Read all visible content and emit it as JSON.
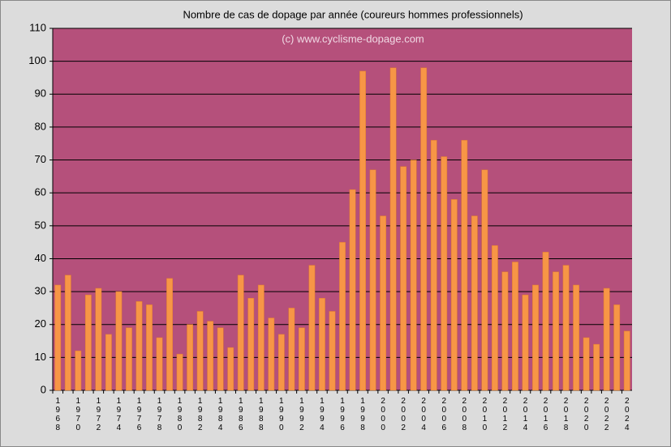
{
  "chart_data": {
    "type": "bar",
    "title": "Nombre  de cas de dopage par année (coureurs hommes professionnels)",
    "annotation": "(c) www.cyclisme-dopage.com",
    "categories": [
      "1968",
      null,
      "1970",
      null,
      "1972",
      null,
      "1974",
      null,
      "1976",
      null,
      "1978",
      null,
      "1980",
      null,
      "1982",
      null,
      "1984",
      null,
      "1986",
      null,
      "1988",
      null,
      "1990",
      null,
      "1992",
      null,
      "1994",
      null,
      "1996",
      null,
      "1998",
      null,
      "2000",
      null,
      "2002",
      null,
      "2004",
      null,
      "2006",
      null,
      "2008",
      null,
      "2010",
      null,
      "2012",
      null,
      "2014",
      null,
      "2016",
      null,
      "2018",
      null,
      "2020",
      null,
      "2022",
      null,
      "2024"
    ],
    "values": [
      32,
      35,
      12,
      29,
      31,
      17,
      30,
      19,
      27,
      26,
      16,
      34,
      11,
      20,
      24,
      21,
      19,
      13,
      35,
      28,
      32,
      22,
      17,
      25,
      19,
      38,
      28,
      24,
      45,
      61,
      97,
      67,
      53,
      98,
      68,
      70,
      98,
      76,
      71,
      58,
      76,
      53,
      67,
      44,
      36,
      39,
      29,
      32,
      42,
      36,
      38,
      32,
      16,
      14,
      31,
      26,
      18
    ],
    "color": "#f79646",
    "ylim": [
      0,
      110
    ],
    "yticks": [
      0,
      10,
      20,
      30,
      40,
      50,
      60,
      70,
      80,
      90,
      100,
      110
    ],
    "grid": true
  }
}
